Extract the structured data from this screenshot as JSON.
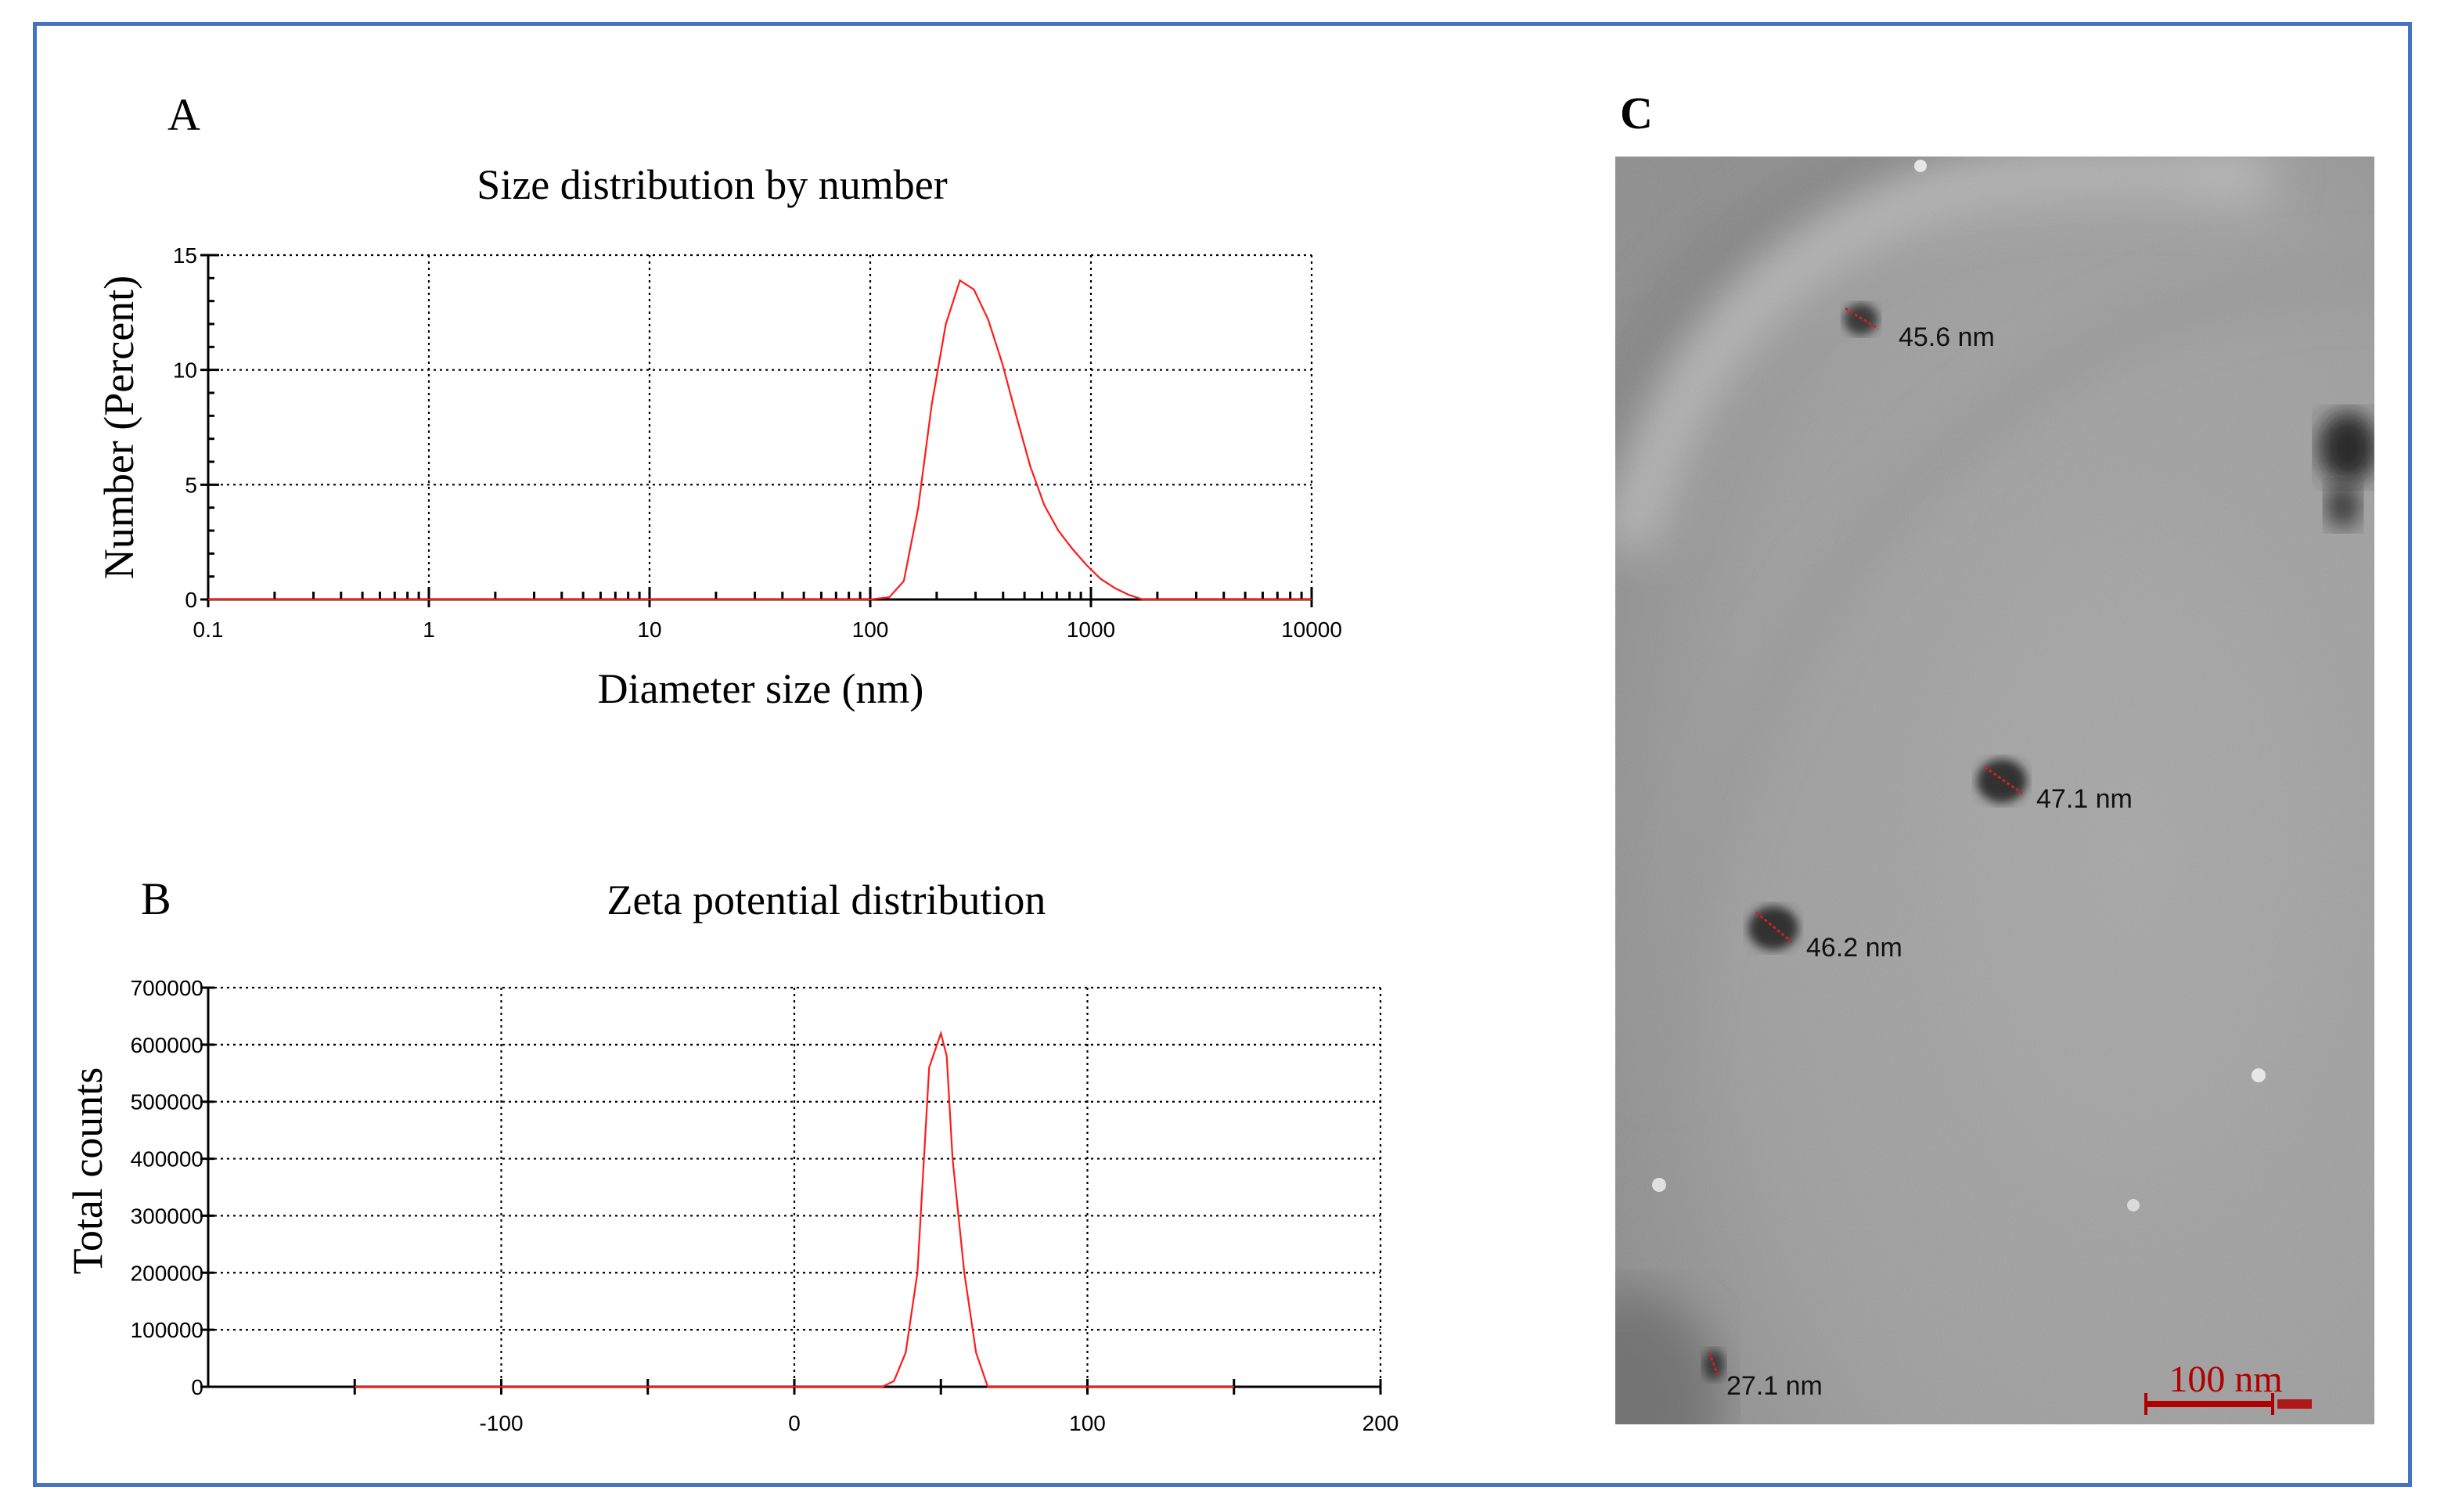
{
  "panels": {
    "a_letter": "A",
    "b_letter": "B",
    "c_letter": "C"
  },
  "colors": {
    "frame": "#4472c4",
    "series": "#ff1a1a",
    "scale_bar": "#b00000"
  },
  "chart_data": [
    {
      "type": "line",
      "title": "Size distribution by number",
      "xlabel": "Diameter size (nm)",
      "ylabel": "Number (Percent)",
      "x_scale": "log",
      "xlim": [
        0.1,
        10000
      ],
      "ylim": [
        0,
        15
      ],
      "x_ticks": [
        "0.1",
        "1",
        "10",
        "100",
        "1000",
        "10000"
      ],
      "y_ticks": [
        "0",
        "5",
        "10",
        "15"
      ],
      "grid": true,
      "series": [
        {
          "x": [
            0.1,
            100,
            122,
            142,
            165,
            190,
            220,
            255,
            295,
            342,
            396,
            459,
            531,
            615,
            712,
            825,
            955,
            1106,
            1281,
            1484,
            1718,
            10000
          ],
          "y": [
            0,
            0,
            0.1,
            0.8,
            4.0,
            8.5,
            12.0,
            13.9,
            13.5,
            12.2,
            10.3,
            8.0,
            5.8,
            4.1,
            3.0,
            2.2,
            1.5,
            0.9,
            0.5,
            0.2,
            0.0,
            0
          ]
        }
      ]
    },
    {
      "type": "line",
      "title": "Zeta potential distribution",
      "xlabel": "",
      "ylabel": "Total counts",
      "xlim": [
        -200,
        200
      ],
      "ylim": [
        0,
        700000
      ],
      "x_ticks": [
        "-100",
        "0",
        "100",
        "200"
      ],
      "y_ticks": [
        "0",
        "100000",
        "200000",
        "300000",
        "400000",
        "500000",
        "600000",
        "700000"
      ],
      "grid": true,
      "series": [
        {
          "x": [
            -150,
            30,
            34,
            38,
            42,
            46,
            50,
            52,
            54,
            58,
            62,
            66,
            150
          ],
          "y": [
            0,
            0,
            10000,
            60000,
            200000,
            560000,
            620000,
            580000,
            400000,
            200000,
            60000,
            0,
            0
          ]
        }
      ]
    }
  ],
  "tem": {
    "particle_labels": [
      "45.6 nm",
      "47.1 nm",
      "46.2 nm",
      "27.1 nm"
    ],
    "scale_bar_label": "100 nm"
  }
}
